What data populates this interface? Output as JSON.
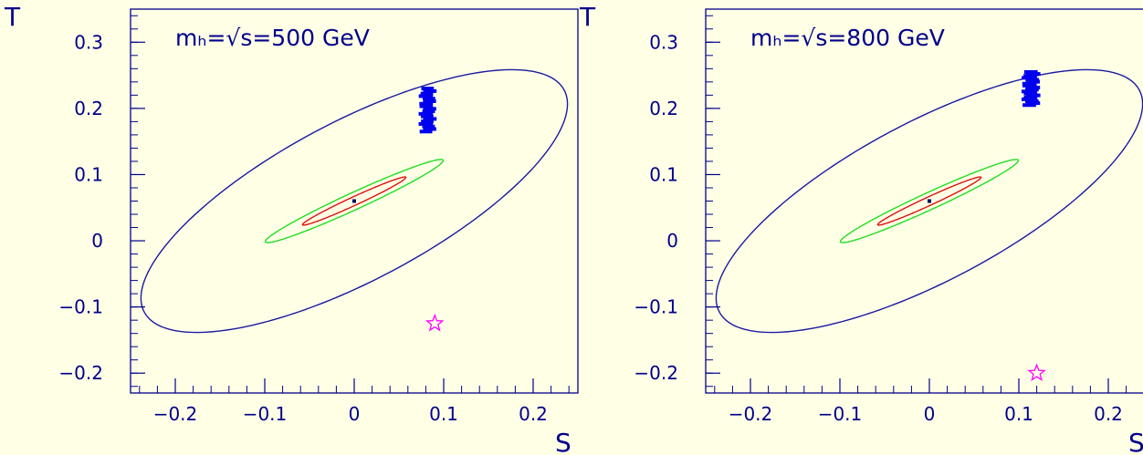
{
  "colors": {
    "background": "#ffffe6",
    "axis": "#00008b",
    "ellipse_outer": "#1a1aa0",
    "ellipse_green": "#22dd22",
    "ellipse_red": "#dd1111",
    "model_points": "#0000ee",
    "star": "#ff00ff"
  },
  "chart_data": [
    {
      "type": "scatter",
      "title": "mₕ=√s=500 GeV",
      "xlabel": "S",
      "ylabel": "T",
      "xlim": [
        -0.25,
        0.25
      ],
      "ylim": [
        -0.23,
        0.35
      ],
      "x_ticks": [
        -0.2,
        -0.1,
        0,
        0.1,
        0.2
      ],
      "x_tick_labels": [
        "−0.2",
        "−0.1",
        "0",
        "0.1",
        "0.2"
      ],
      "y_ticks": [
        -0.2,
        -0.1,
        0,
        0.1,
        0.2,
        0.3
      ],
      "y_tick_labels": [
        "−0.2",
        "−0.1",
        "0",
        "0.1",
        "0.2",
        "0.3"
      ],
      "grid": false,
      "ellipses": [
        {
          "name": "outer",
          "center": [
            0.0,
            0.06
          ],
          "semi_major": 0.29,
          "semi_minor": 0.11,
          "angle_deg": 38,
          "color": "#1a1aa0"
        },
        {
          "name": "green",
          "center": [
            0.0,
            0.06
          ],
          "semi_major": 0.117,
          "semi_minor": 0.012,
          "angle_deg": 32,
          "color": "#22dd22"
        },
        {
          "name": "red",
          "center": [
            0.0,
            0.06
          ],
          "semi_major": 0.068,
          "semi_minor": 0.006,
          "angle_deg": 32,
          "color": "#dd1111"
        }
      ],
      "best_fit": {
        "x": 0.0,
        "y": 0.06
      },
      "model_band": {
        "x_min": 0.077,
        "x_max": 0.088,
        "y_min": 0.165,
        "y_max": 0.23,
        "color": "#0000ee"
      },
      "star": {
        "x": 0.09,
        "y": -0.125,
        "color": "#ff00ff"
      }
    },
    {
      "type": "scatter",
      "title": "mₕ=√s=800 GeV",
      "xlabel": "S",
      "ylabel": "T",
      "xlim": [
        -0.25,
        0.25
      ],
      "ylim": [
        -0.23,
        0.35
      ],
      "x_ticks": [
        -0.2,
        -0.1,
        0,
        0.1,
        0.2
      ],
      "x_tick_labels": [
        "−0.2",
        "−0.1",
        "0",
        "0.1",
        "0.2"
      ],
      "y_ticks": [
        -0.2,
        -0.1,
        0,
        0.1,
        0.2,
        0.3
      ],
      "y_tick_labels": [
        "−0.2",
        "−0.1",
        "0",
        "0.1",
        "0.2",
        "0.3"
      ],
      "grid": false,
      "ellipses": [
        {
          "name": "outer",
          "center": [
            0.0,
            0.06
          ],
          "semi_major": 0.29,
          "semi_minor": 0.11,
          "angle_deg": 38,
          "color": "#1a1aa0"
        },
        {
          "name": "green",
          "center": [
            0.0,
            0.06
          ],
          "semi_major": 0.117,
          "semi_minor": 0.012,
          "angle_deg": 32,
          "color": "#22dd22"
        },
        {
          "name": "red",
          "center": [
            0.0,
            0.06
          ],
          "semi_major": 0.068,
          "semi_minor": 0.006,
          "angle_deg": 32,
          "color": "#dd1111"
        }
      ],
      "best_fit": {
        "x": 0.0,
        "y": 0.06
      },
      "model_band": {
        "x_min": 0.108,
        "x_max": 0.12,
        "y_min": 0.205,
        "y_max": 0.255,
        "color": "#0000ee"
      },
      "star": {
        "x": 0.12,
        "y": -0.2,
        "color": "#ff00ff"
      }
    }
  ]
}
